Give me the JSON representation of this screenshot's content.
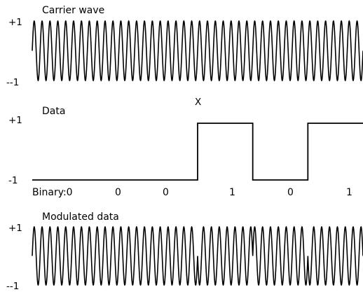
{
  "panels": [
    {
      "id": "carrier",
      "title": "Carrier wave",
      "y_max_label": "+1",
      "y_min_label": "--1",
      "cycles": 42
    },
    {
      "id": "data",
      "title": "Data",
      "y_max_label": "+1",
      "y_min_label": "-1",
      "annotation": "X",
      "binary_labels": [
        "Binary:0",
        "0",
        "0",
        "1",
        "0",
        "1"
      ],
      "bits": [
        0,
        0,
        0,
        1,
        0,
        1
      ]
    },
    {
      "id": "modulated",
      "title": "Modulated data",
      "y_max_label": "+1",
      "y_min_label": "--1",
      "cycles": 42
    }
  ],
  "colors": {
    "stroke": "#000000",
    "background": "#ffffff"
  }
}
